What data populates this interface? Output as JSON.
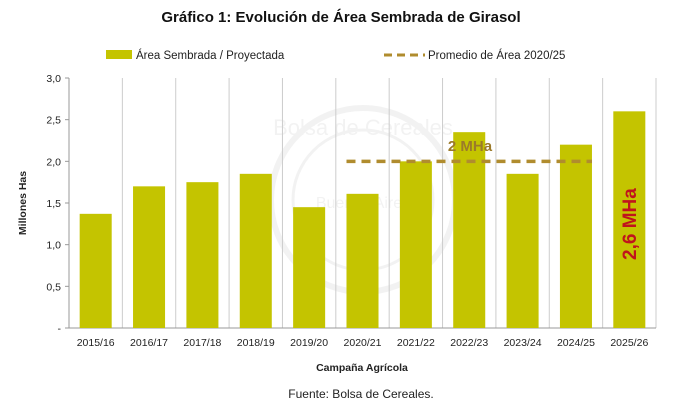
{
  "chart_data": {
    "type": "bar",
    "title": "Gráfico 1: Evolución de Área Sembrada de Girasol",
    "xlabel": "Campaña Agrícola",
    "ylabel": "Millones Has",
    "ylim": [
      0,
      3.0
    ],
    "y_ticks": [
      "-",
      "0,5",
      "1,0",
      "1,5",
      "2,0",
      "2,5",
      "3,0"
    ],
    "y_tick_values": [
      0,
      0.5,
      1.0,
      1.5,
      2.0,
      2.5,
      3.0
    ],
    "categories": [
      "2015/16",
      "2016/17",
      "2017/18",
      "2018/19",
      "2019/20",
      "2020/21",
      "2021/22",
      "2022/23",
      "2023/24",
      "2024/25",
      "2025/26"
    ],
    "series": [
      {
        "name": "Área Sembrada / Proyectada",
        "values": [
          1.37,
          1.7,
          1.75,
          1.85,
          1.45,
          1.61,
          2.0,
          2.35,
          1.85,
          2.2,
          2.6
        ],
        "color": "#c4c400"
      },
      {
        "name": "Promedio de Área 2020/25",
        "type": "dashed-line",
        "value": 2.0,
        "from": "2020/21",
        "to": "2024/25",
        "color": "#b08c2e"
      }
    ],
    "annotations": [
      {
        "text": "2 MHa",
        "color": "#9b7a2a"
      },
      {
        "text": "2,6 MHa",
        "color": "#c0141c"
      }
    ],
    "grid": {
      "vertical": true,
      "horizontal": false
    },
    "legend_position": "top",
    "source": "Fuente: Bolsa de Cereales."
  }
}
